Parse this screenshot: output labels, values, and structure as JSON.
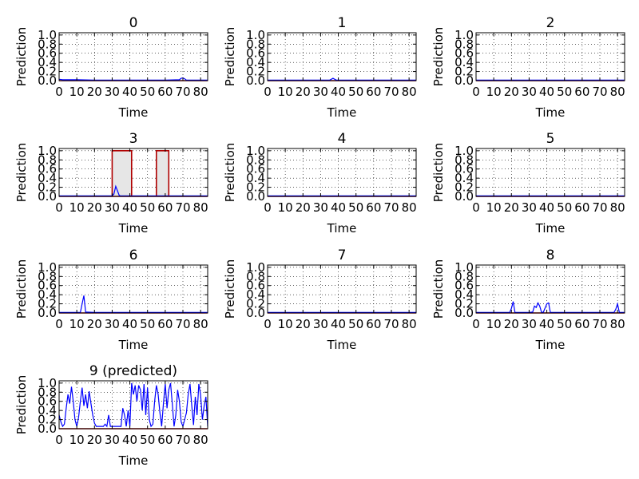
{
  "chart_data": [
    {
      "type": "line",
      "title": "0",
      "xlabel": "Time",
      "ylabel": "Prediction",
      "xlim": [
        0,
        84
      ],
      "ylim": [
        0,
        1.05
      ],
      "grid": true,
      "xticks": [
        "0",
        "10",
        "20",
        "30",
        "40",
        "50",
        "60",
        "70",
        "80"
      ],
      "yticks": [
        "0.0",
        "0.2",
        "0.4",
        "0.6",
        "0.8",
        "1.0"
      ],
      "series": [
        {
          "color": "#0000ff",
          "x": [
            0,
            2,
            4,
            6,
            8,
            10,
            20,
            30,
            40,
            50,
            60,
            68,
            69,
            70,
            71,
            72,
            80,
            84
          ],
          "y": [
            0.03,
            0.02,
            0.02,
            0.02,
            0.02,
            0.02,
            0.01,
            0.01,
            0.01,
            0.01,
            0.01,
            0.02,
            0.05,
            0.06,
            0.04,
            0.01,
            0.01,
            0.01
          ]
        }
      ],
      "truth": []
    },
    {
      "type": "line",
      "title": "1",
      "xlabel": "Time",
      "ylabel": "Prediction",
      "xlim": [
        0,
        84
      ],
      "ylim": [
        0,
        1.05
      ],
      "grid": true,
      "xticks": [
        "0",
        "10",
        "20",
        "30",
        "40",
        "50",
        "60",
        "70",
        "80"
      ],
      "yticks": [
        "0.0",
        "0.2",
        "0.4",
        "0.6",
        "0.8",
        "1.0"
      ],
      "series": [
        {
          "color": "#0000ff",
          "x": [
            0,
            10,
            20,
            30,
            35,
            36,
            37,
            38,
            39,
            40,
            50,
            60,
            70,
            80,
            84
          ],
          "y": [
            0.01,
            0.01,
            0.01,
            0.01,
            0.01,
            0.03,
            0.05,
            0.03,
            0.01,
            0.01,
            0.01,
            0.01,
            0.01,
            0.01,
            0.01
          ]
        }
      ],
      "truth": []
    },
    {
      "type": "line",
      "title": "2",
      "xlabel": "Time",
      "ylabel": "Prediction",
      "xlim": [
        0,
        84
      ],
      "ylim": [
        0,
        1.05
      ],
      "grid": true,
      "xticks": [
        "0",
        "10",
        "20",
        "30",
        "40",
        "50",
        "60",
        "70",
        "80"
      ],
      "yticks": [
        "0.0",
        "0.2",
        "0.4",
        "0.6",
        "0.8",
        "1.0"
      ],
      "series": [
        {
          "color": "#0000ff",
          "x": [
            0,
            10,
            20,
            30,
            40,
            50,
            60,
            70,
            80,
            84
          ],
          "y": [
            0.01,
            0.01,
            0.01,
            0.01,
            0.01,
            0.01,
            0.01,
            0.01,
            0.01,
            0.01
          ]
        }
      ],
      "truth": []
    },
    {
      "type": "line",
      "title": "3",
      "xlabel": "Time",
      "ylabel": "Prediction",
      "xlim": [
        0,
        84
      ],
      "ylim": [
        0,
        1.05
      ],
      "grid": true,
      "xticks": [
        "0",
        "10",
        "20",
        "30",
        "40",
        "50",
        "60",
        "70",
        "80"
      ],
      "yticks": [
        "0.0",
        "0.2",
        "0.4",
        "0.6",
        "0.8",
        "1.0"
      ],
      "series": [
        {
          "color": "#0000ff",
          "x": [
            0,
            10,
            20,
            30,
            31,
            32,
            33,
            34,
            35,
            40,
            50,
            60,
            70,
            80,
            84
          ],
          "y": [
            0.01,
            0.01,
            0.01,
            0.01,
            0.05,
            0.22,
            0.12,
            0.02,
            0.01,
            0.01,
            0.01,
            0.01,
            0.01,
            0.01,
            0.01
          ]
        }
      ],
      "truth": [
        {
          "start": 30,
          "end": 41,
          "value": 1.0
        },
        {
          "start": 55,
          "end": 62,
          "value": 1.0
        }
      ]
    },
    {
      "type": "line",
      "title": "4",
      "xlabel": "Time",
      "ylabel": "Prediction",
      "xlim": [
        0,
        84
      ],
      "ylim": [
        0,
        1.05
      ],
      "grid": true,
      "xticks": [
        "0",
        "10",
        "20",
        "30",
        "40",
        "50",
        "60",
        "70",
        "80"
      ],
      "yticks": [
        "0.0",
        "0.2",
        "0.4",
        "0.6",
        "0.8",
        "1.0"
      ],
      "series": [
        {
          "color": "#0000ff",
          "x": [
            0,
            10,
            20,
            30,
            40,
            50,
            60,
            70,
            80,
            84
          ],
          "y": [
            0.01,
            0.01,
            0.01,
            0.01,
            0.01,
            0.01,
            0.01,
            0.01,
            0.01,
            0.01
          ]
        }
      ],
      "truth": []
    },
    {
      "type": "line",
      "title": "5",
      "xlabel": "Time",
      "ylabel": "Prediction",
      "xlim": [
        0,
        84
      ],
      "ylim": [
        0,
        1.05
      ],
      "grid": true,
      "xticks": [
        "0",
        "10",
        "20",
        "30",
        "40",
        "50",
        "60",
        "70",
        "80"
      ],
      "yticks": [
        "0.0",
        "0.2",
        "0.4",
        "0.6",
        "0.8",
        "1.0"
      ],
      "series": [
        {
          "color": "#0000ff",
          "x": [
            0,
            10,
            20,
            30,
            40,
            50,
            60,
            70,
            80,
            84
          ],
          "y": [
            0.01,
            0.01,
            0.01,
            0.01,
            0.01,
            0.01,
            0.01,
            0.01,
            0.01,
            0.01
          ]
        }
      ],
      "truth": []
    },
    {
      "type": "line",
      "title": "6",
      "xlabel": "Time",
      "ylabel": "Prediction",
      "xlim": [
        0,
        84
      ],
      "ylim": [
        0,
        1.05
      ],
      "grid": true,
      "xticks": [
        "0",
        "10",
        "20",
        "30",
        "40",
        "50",
        "60",
        "70",
        "80"
      ],
      "yticks": [
        "0.0",
        "0.2",
        "0.4",
        "0.6",
        "0.8",
        "1.0"
      ],
      "series": [
        {
          "color": "#0000ff",
          "x": [
            0,
            10,
            12,
            13,
            14,
            15,
            20,
            30,
            40,
            50,
            60,
            70,
            80,
            84
          ],
          "y": [
            0.01,
            0.01,
            0.01,
            0.2,
            0.38,
            0.02,
            0.01,
            0.01,
            0.01,
            0.01,
            0.01,
            0.01,
            0.01,
            0.01
          ]
        }
      ],
      "truth": []
    },
    {
      "type": "line",
      "title": "7",
      "xlabel": "Time",
      "ylabel": "Prediction",
      "xlim": [
        0,
        84
      ],
      "ylim": [
        0,
        1.05
      ],
      "grid": true,
      "xticks": [
        "0",
        "10",
        "20",
        "30",
        "40",
        "50",
        "60",
        "70",
        "80"
      ],
      "yticks": [
        "0.0",
        "0.2",
        "0.4",
        "0.6",
        "0.8",
        "1.0"
      ],
      "series": [
        {
          "color": "#0000ff",
          "x": [
            0,
            10,
            20,
            30,
            40,
            50,
            60,
            70,
            80,
            84
          ],
          "y": [
            0.01,
            0.01,
            0.01,
            0.01,
            0.01,
            0.01,
            0.01,
            0.01,
            0.01,
            0.01
          ]
        }
      ],
      "truth": []
    },
    {
      "type": "line",
      "title": "8",
      "xlabel": "Time",
      "ylabel": "Prediction",
      "xlim": [
        0,
        84
      ],
      "ylim": [
        0,
        1.05
      ],
      "grid": true,
      "xticks": [
        "0",
        "10",
        "20",
        "30",
        "40",
        "50",
        "60",
        "70",
        "80"
      ],
      "yticks": [
        "0.0",
        "0.2",
        "0.4",
        "0.6",
        "0.8",
        "1.0"
      ],
      "series": [
        {
          "color": "#0000ff",
          "x": [
            0,
            10,
            19,
            20,
            21,
            22,
            30,
            32,
            33,
            34,
            35,
            36,
            37,
            38,
            40,
            41,
            42,
            50,
            60,
            70,
            78,
            79,
            80,
            81,
            84
          ],
          "y": [
            0.01,
            0.01,
            0.01,
            0.1,
            0.25,
            0.01,
            0.01,
            0.02,
            0.15,
            0.12,
            0.22,
            0.15,
            0.02,
            0.01,
            0.2,
            0.22,
            0.01,
            0.01,
            0.01,
            0.01,
            0.01,
            0.08,
            0.2,
            0.01,
            0.01
          ]
        }
      ],
      "truth": []
    },
    {
      "type": "line",
      "title": "9 (predicted)",
      "xlabel": "Time",
      "ylabel": "Prediction",
      "xlim": [
        0,
        84
      ],
      "ylim": [
        0,
        1.05
      ],
      "grid": true,
      "xticks": [
        "0",
        "10",
        "20",
        "30",
        "40",
        "50",
        "60",
        "70",
        "80"
      ],
      "yticks": [
        "0.0",
        "0.2",
        "0.4",
        "0.6",
        "0.8",
        "1.0"
      ],
      "series": [
        {
          "color": "#0000ff",
          "x": [
            0,
            1,
            2,
            3,
            4,
            5,
            6,
            7,
            8,
            9,
            10,
            11,
            12,
            13,
            14,
            15,
            16,
            17,
            18,
            19,
            20,
            21,
            22,
            23,
            24,
            25,
            26,
            27,
            28,
            29,
            30,
            31,
            32,
            33,
            34,
            35,
            36,
            37,
            38,
            39,
            40,
            41,
            42,
            43,
            44,
            45,
            46,
            47,
            48,
            49,
            50,
            51,
            52,
            53,
            54,
            55,
            56,
            57,
            58,
            59,
            60,
            61,
            62,
            63,
            64,
            65,
            66,
            67,
            68,
            69,
            70,
            71,
            72,
            73,
            74,
            75,
            76,
            77,
            78,
            79,
            80,
            81,
            82,
            83,
            84
          ],
          "y": [
            0.3,
            0.15,
            0.05,
            0.1,
            0.45,
            0.75,
            0.55,
            0.92,
            0.6,
            0.2,
            0.05,
            0.25,
            0.6,
            0.9,
            0.5,
            0.75,
            0.45,
            0.82,
            0.55,
            0.3,
            0.12,
            0.05,
            0.05,
            0.05,
            0.05,
            0.05,
            0.1,
            0.05,
            0.3,
            0.05,
            0.05,
            0.05,
            0.05,
            0.05,
            0.05,
            0.05,
            0.45,
            0.3,
            0.05,
            0.4,
            0.05,
            1.0,
            0.75,
            0.95,
            0.6,
            0.95,
            0.85,
            0.4,
            0.98,
            0.3,
            0.9,
            0.2,
            0.05,
            0.1,
            0.6,
            0.95,
            0.75,
            0.35,
            0.05,
            0.55,
            0.98,
            0.45,
            0.85,
            1.0,
            0.55,
            0.05,
            0.3,
            0.85,
            0.6,
            0.15,
            0.05,
            0.2,
            0.35,
            0.75,
            0.98,
            0.5,
            0.08,
            0.7,
            0.3,
            0.98,
            0.75,
            0.2,
            0.5,
            0.7,
            0.05
          ]
        }
      ],
      "truth": []
    }
  ]
}
